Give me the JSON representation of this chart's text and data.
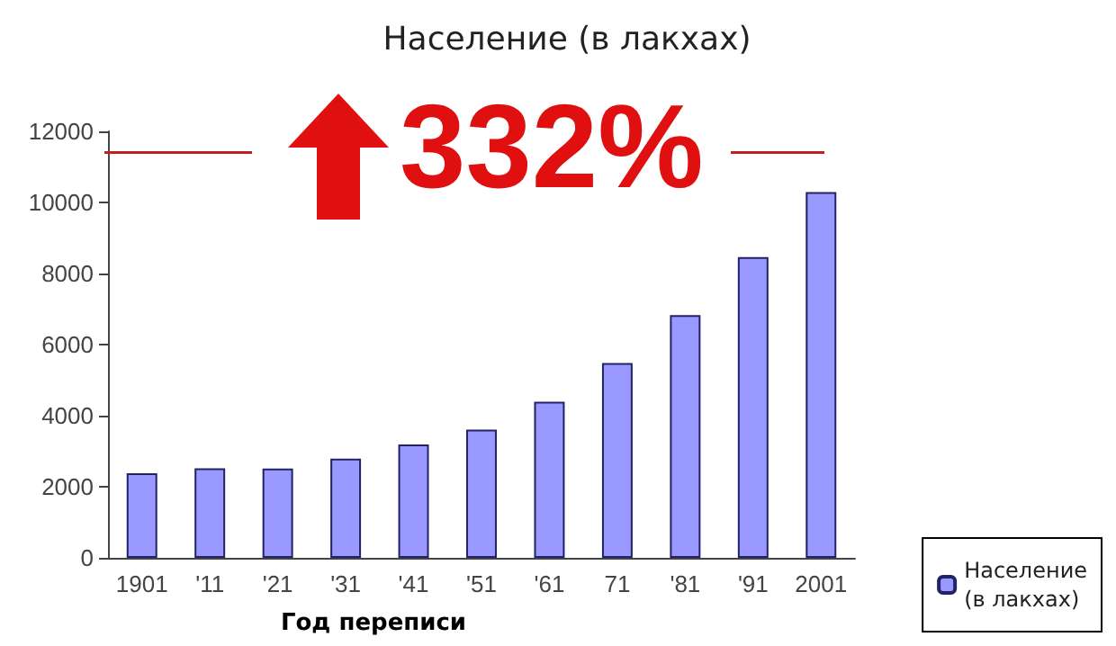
{
  "chart_data": {
    "type": "bar",
    "title": "Население (в лакхах)",
    "xlabel": "Год переписи",
    "categories": [
      "1901",
      "'11",
      "'21",
      "'31",
      "'41",
      "'51",
      "'61",
      "71",
      "'81",
      "'91",
      "2001"
    ],
    "series": [
      {
        "name": "Население (в лакхах)",
        "color": "#9999ff",
        "values": [
          2380,
          2520,
          2510,
          2790,
          3190,
          3610,
          4390,
          5480,
          6830,
          8460,
          10290
        ]
      }
    ],
    "ylim": [
      0,
      12000
    ],
    "yticks": [
      0,
      2000,
      4000,
      6000,
      8000,
      10000,
      12000
    ],
    "grid": false,
    "legend": "bottom right",
    "annotations": [
      "332%"
    ]
  }
}
